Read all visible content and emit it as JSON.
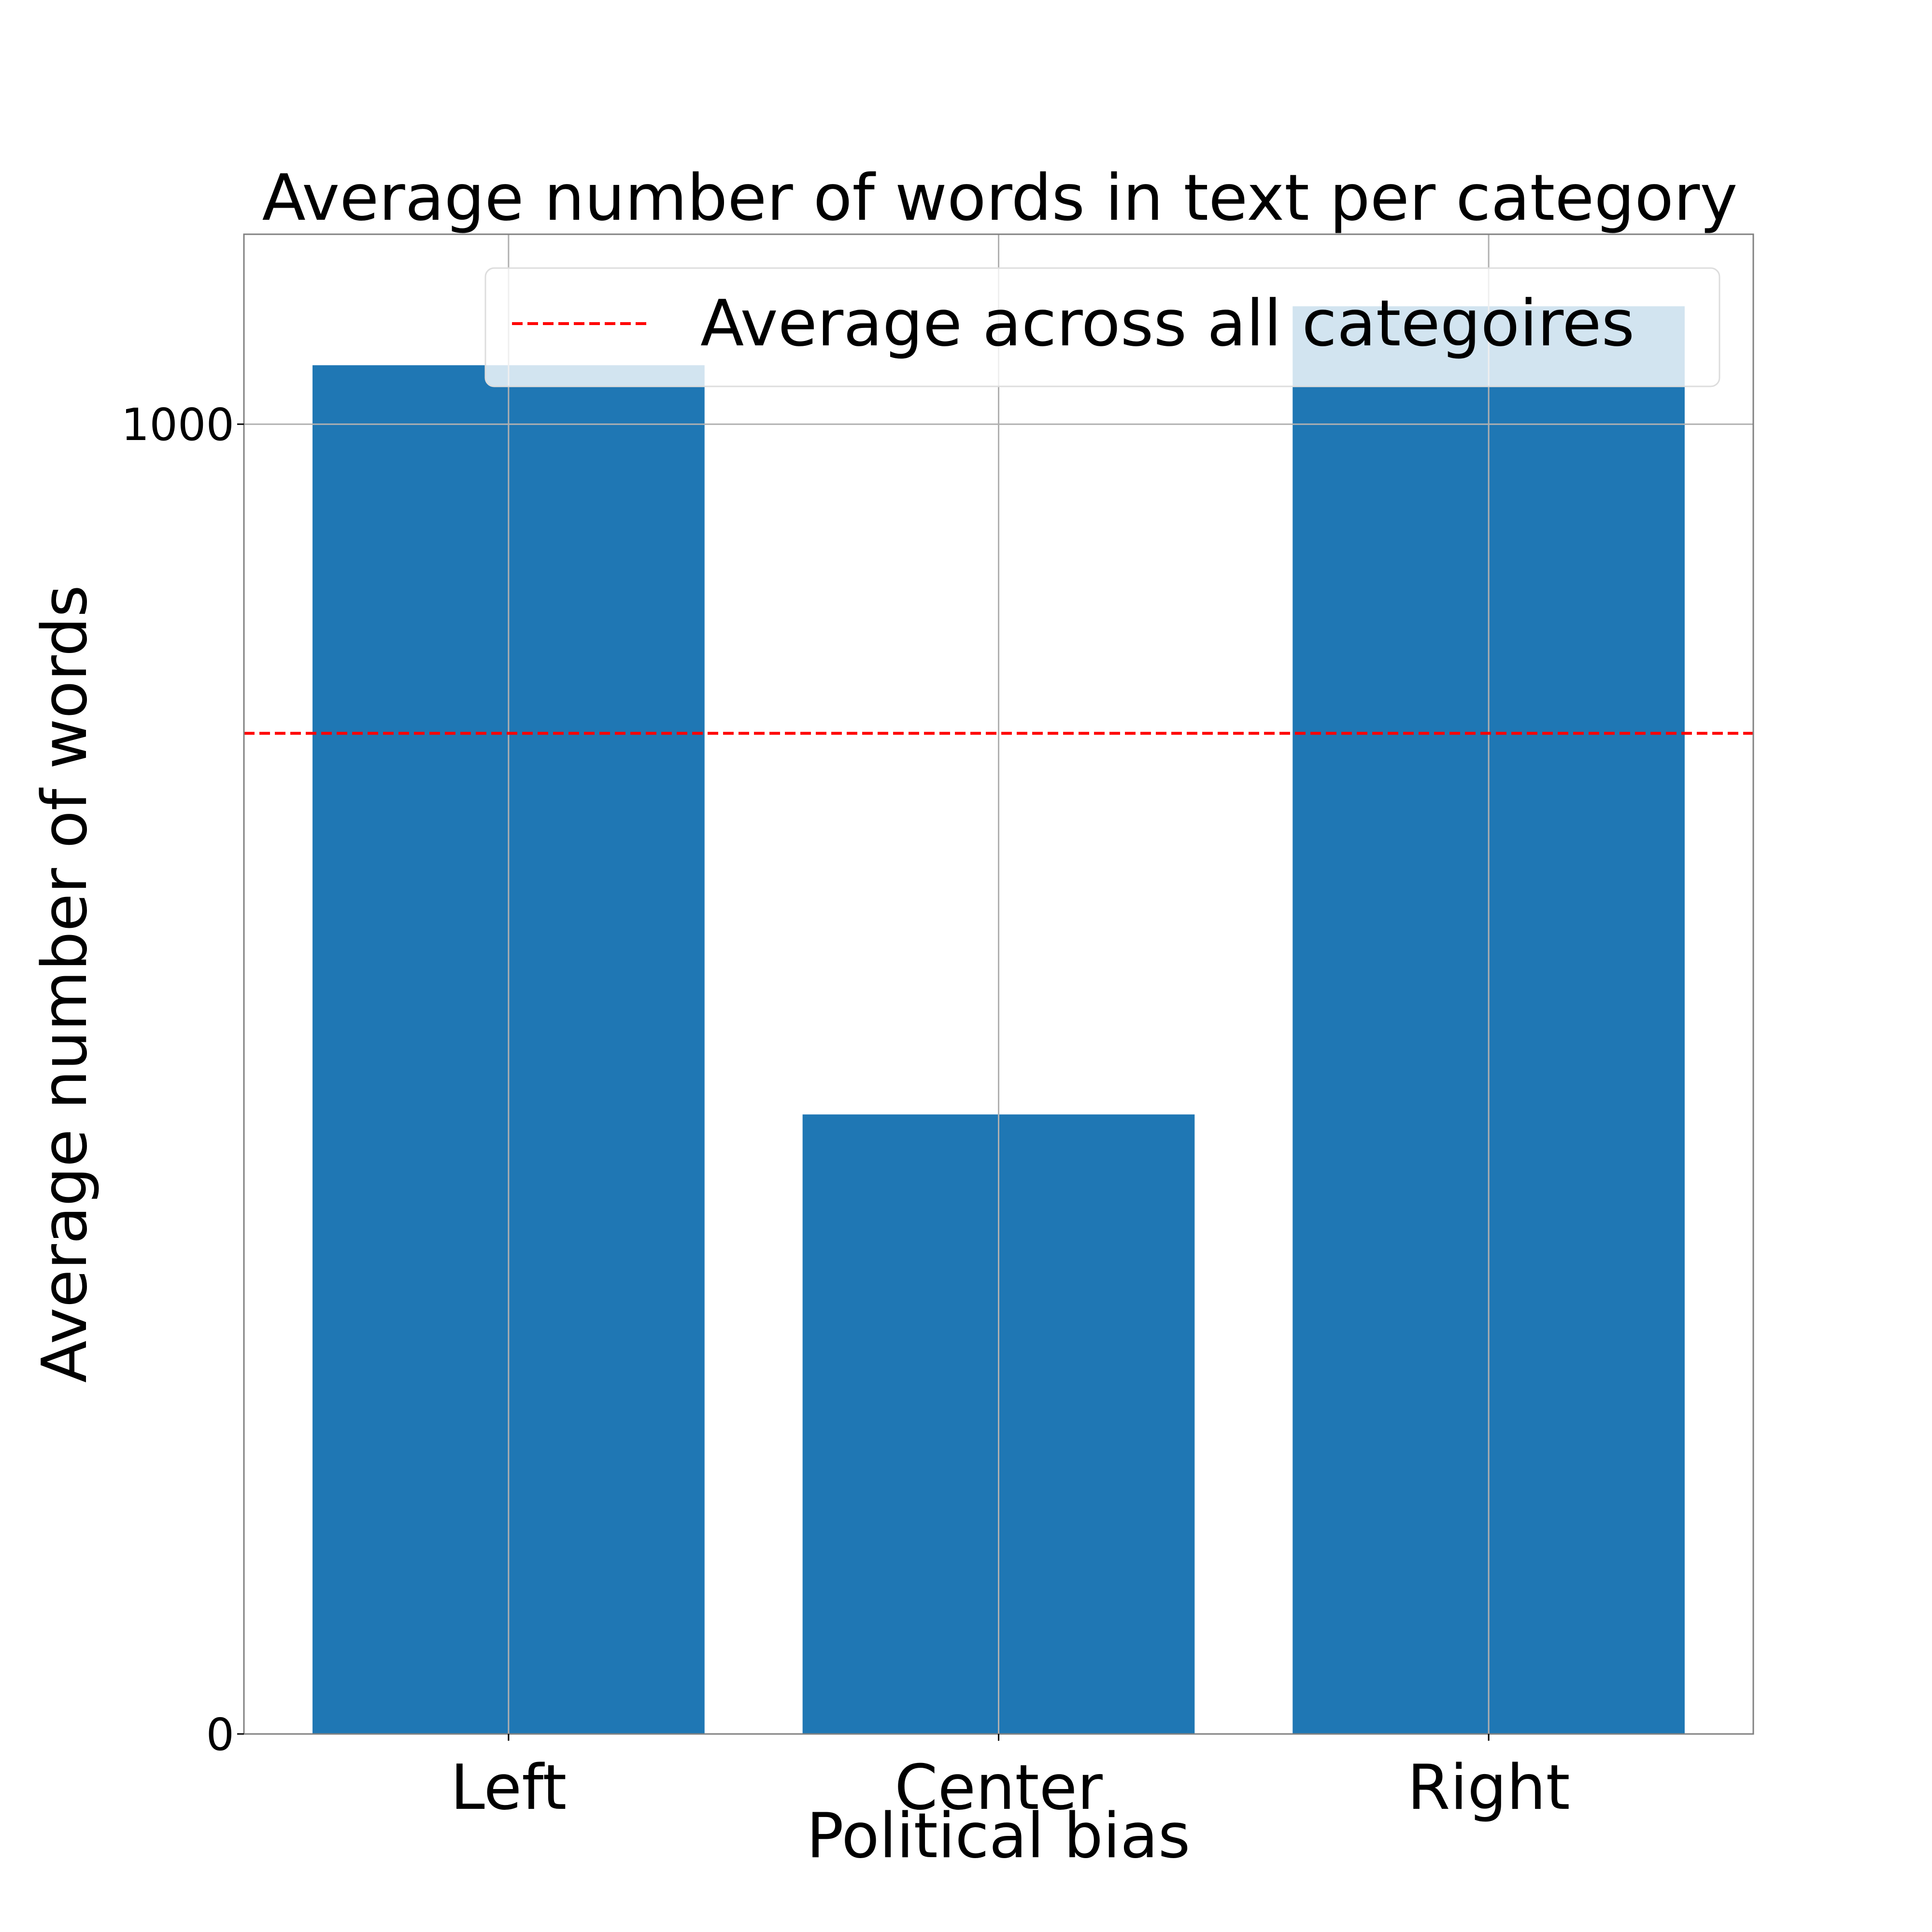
{
  "chart_data": {
    "type": "bar",
    "title": "Average number of words in text per category",
    "xlabel": "Political bias",
    "ylabel": "Average number of words",
    "categories": [
      "Left",
      "Center",
      "Right"
    ],
    "values": [
      1045,
      473,
      1090
    ],
    "ylim": [
      0,
      1145
    ],
    "yticks": [
      0,
      1000
    ],
    "ytick_labels": [
      "0",
      "1000"
    ],
    "reference_line": {
      "label": "Average across all categoires",
      "value": 764,
      "color": "#ff0000",
      "style": "dashed"
    },
    "bar_color": "#1f77b4",
    "grid": true,
    "legend_position": "top-right"
  }
}
